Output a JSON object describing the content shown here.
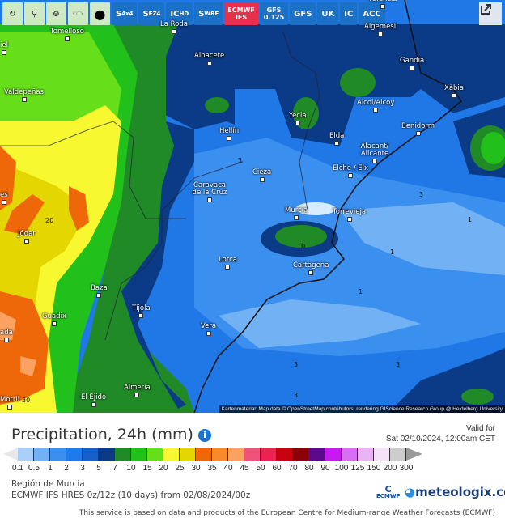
{
  "toolbar": {
    "icon_buttons": [
      {
        "name": "refresh-icon"
      },
      {
        "name": "map-pin-icon"
      },
      {
        "name": "zoom-out-icon"
      },
      {
        "name": "city-icon",
        "label": "CITY"
      },
      {
        "name": "drop-icon"
      }
    ],
    "models": [
      {
        "main": "S",
        "sub": "4x4"
      },
      {
        "main": "S",
        "sub": "EZ4"
      },
      {
        "main": "IC",
        "sub": "HD"
      },
      {
        "main": "S",
        "sub": "WRF"
      },
      {
        "main": "ECMWF",
        "sub": "IFS",
        "active": true
      },
      {
        "main": "GFS",
        "sub": "0.125"
      },
      {
        "main": "GFS"
      },
      {
        "main": "UK"
      },
      {
        "main": "IC"
      },
      {
        "main": "ACC"
      }
    ],
    "share_icon": "share-icon"
  },
  "map": {
    "cities": [
      "Tomelloso",
      "La Roda",
      "Albacete",
      "Valdepeñas",
      "Hellín",
      "Yecla",
      "Elda",
      "Alcoi/Alcoy",
      "Gandia",
      "Xàbia",
      "Benidorm",
      "Algemesí",
      "Alacant/ Alicante",
      "Elche / Elx",
      "Cieza",
      "Caravaca de la Cruz",
      "Murcia",
      "Torrevieja",
      "Cartagena",
      "Lorca",
      "Jódar",
      "Baza",
      "Tíjola",
      "Guadix",
      "Vera",
      "Almería",
      "El Ejido",
      "Motril",
      "ada",
      "es",
      "iel",
      "Valencia"
    ],
    "contour_labels": [
      "3",
      "1",
      "1",
      "1",
      "10",
      "20",
      "30",
      "3",
      "3",
      "3",
      "3"
    ],
    "attribution": "Kartenmaterial: Map data © OpenStreetMap contributors, rendering GIScience Research Group @ Heidelberg University"
  },
  "header": {
    "title": "Precipitation, 24h (mm)",
    "info_icon": "info-icon",
    "valid_label": "Valid for",
    "valid_time": "Sat 02/10/2024, 12:00am CET"
  },
  "legend": {
    "ticks": [
      "0.1",
      "0.5",
      "1",
      "2",
      "3",
      "5",
      "7",
      "10",
      "15",
      "20",
      "25",
      "30",
      "35",
      "40",
      "45",
      "50",
      "60",
      "70",
      "80",
      "90",
      "100",
      "125",
      "150",
      "200",
      "300"
    ],
    "colors": [
      "#a9d0fa",
      "#72b2f4",
      "#3b90ef",
      "#1f7be9",
      "#1561c9",
      "#0b3a86",
      "#1f8a26",
      "#22c01a",
      "#66df1a",
      "#f8f830",
      "#e4d600",
      "#ee680a",
      "#f78a2a",
      "#fba262",
      "#f0527a",
      "#ec2250",
      "#c80010",
      "#8c0008",
      "#5a0a8a",
      "#c61af0",
      "#d86ef2",
      "#e9b3f5",
      "#f5e2f9",
      "#cccccc"
    ],
    "under_color": "#e8e8e8",
    "over_color": "#999999"
  },
  "meta": {
    "region": "Región de Murcia",
    "model_run": "ECMWF IFS HRES 0z/12z (10 days) from 02/08/2024/00z",
    "ecmwf_logo": "ECMWF",
    "brand": "meteologix.com",
    "footer": "This service is based on data and products of the European Centre for Medium-range Weather Forecasts (ECMWF)"
  }
}
